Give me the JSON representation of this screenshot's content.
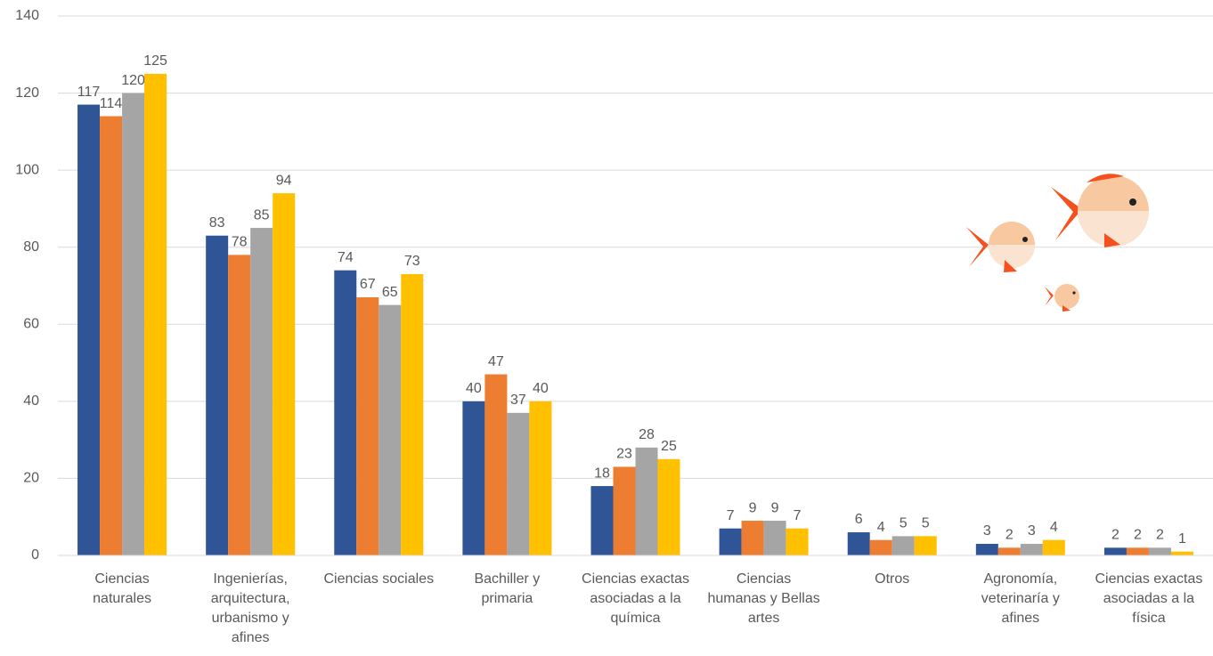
{
  "chart_data": {
    "type": "bar",
    "categories": [
      "Ciencias naturales",
      "Ingenierías, arquitectura, urbanismo y afines",
      "Ciencias sociales",
      "Bachiller y primaria",
      "Ciencias exactas asociadas a la química",
      "Ciencias humanas y Bellas artes",
      "Otros",
      "Agronomía, veterinaría y afines",
      "Ciencias exactas asociadas a la física"
    ],
    "series": [
      {
        "color": "#2f5597",
        "values": [
          117,
          83,
          74,
          40,
          18,
          7,
          6,
          3,
          2
        ]
      },
      {
        "color": "#ed7d31",
        "values": [
          114,
          78,
          67,
          47,
          23,
          9,
          4,
          2,
          2
        ]
      },
      {
        "color": "#a5a5a5",
        "values": [
          120,
          85,
          65,
          37,
          28,
          9,
          5,
          3,
          2
        ]
      },
      {
        "color": "#ffc000",
        "values": [
          125,
          94,
          73,
          40,
          25,
          7,
          5,
          4,
          1
        ]
      }
    ],
    "ylim": [
      0,
      140
    ],
    "yticks": [
      0,
      20,
      40,
      60,
      80,
      100,
      120,
      140
    ],
    "grid": true
  }
}
